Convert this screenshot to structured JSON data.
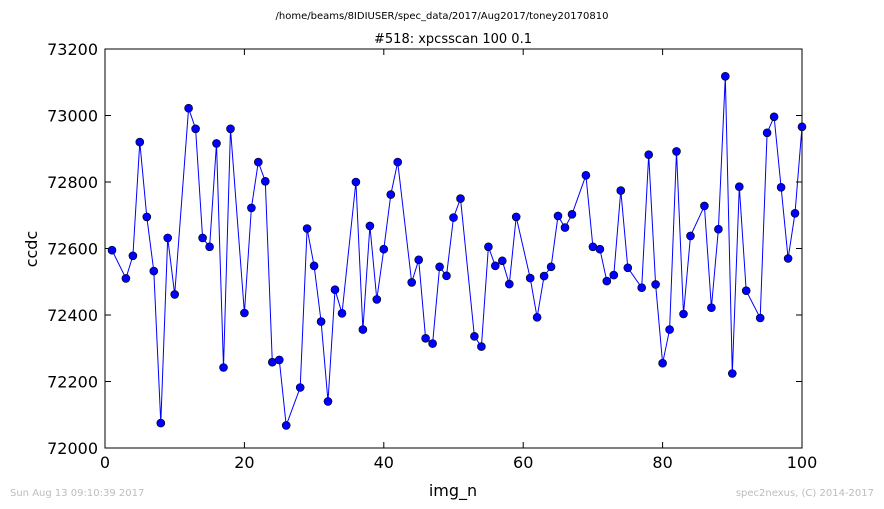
{
  "header": {
    "path": "/home/beams/8IDIUSER/spec_data/2017/Aug2017/toney20170810"
  },
  "footer": {
    "timestamp": "Sun Aug 13 09:10:39 2017",
    "credit": "spec2nexus, (C) 2014-2017"
  },
  "colors": {
    "series": "#0000ff",
    "axis": "#000000",
    "footer_text": "#bdbdbd"
  },
  "chart_data": {
    "type": "line",
    "title": "#518: xpcsscan 100 0.1",
    "xlabel": "img_n",
    "ylabel": "ccdc",
    "xlim": [
      0,
      100
    ],
    "ylim": [
      72000,
      73200
    ],
    "xticks": [
      0,
      20,
      40,
      60,
      80,
      100
    ],
    "yticks": [
      72000,
      72200,
      72400,
      72600,
      72800,
      73000,
      73200
    ],
    "grid": false,
    "legend": "none",
    "markers": "circle",
    "series": [
      {
        "x": [
          1,
          3,
          4,
          5,
          6,
          7,
          8,
          9,
          10,
          12,
          13,
          14,
          15,
          16,
          17,
          18,
          20,
          21,
          22,
          23,
          24,
          25,
          26,
          28,
          29,
          30,
          31,
          32,
          33,
          34,
          36,
          37,
          38,
          39,
          40,
          41,
          42,
          44,
          45,
          46,
          47,
          48,
          49,
          50,
          51,
          53,
          54,
          55,
          56,
          57,
          58,
          59,
          61,
          62,
          63,
          64,
          65,
          66,
          67,
          69,
          70,
          71,
          72,
          73,
          74,
          75,
          77,
          78,
          79,
          80,
          81,
          82,
          83,
          84,
          86,
          87,
          88,
          89,
          90,
          91,
          92,
          94,
          95,
          96,
          97,
          98,
          99,
          100
        ],
        "y": [
          72595,
          72510,
          72578,
          72920,
          72695,
          72532,
          72075,
          72632,
          72462,
          73022,
          72960,
          72632,
          72605,
          72916,
          72242,
          72960,
          72406,
          72722,
          72860,
          72802,
          72258,
          72265,
          72068,
          72182,
          72660,
          72548,
          72380,
          72140,
          72476,
          72405,
          72800,
          72356,
          72668,
          72447,
          72598,
          72762,
          72860,
          72498,
          72566,
          72330,
          72314,
          72545,
          72518,
          72693,
          72750,
          72336,
          72305,
          72605,
          72548,
          72563,
          72493,
          72695,
          72511,
          72393,
          72517,
          72545,
          72698,
          72663,
          72703,
          72820,
          72605,
          72598,
          72502,
          72520,
          72774,
          72542,
          72482,
          72882,
          72492,
          72255,
          72356,
          72892,
          72403,
          72638,
          72728,
          72422,
          72658,
          73118,
          72224,
          72786,
          72473,
          72391,
          72948,
          72996,
          72784,
          72570,
          72706,
          72966
        ]
      }
    ]
  }
}
